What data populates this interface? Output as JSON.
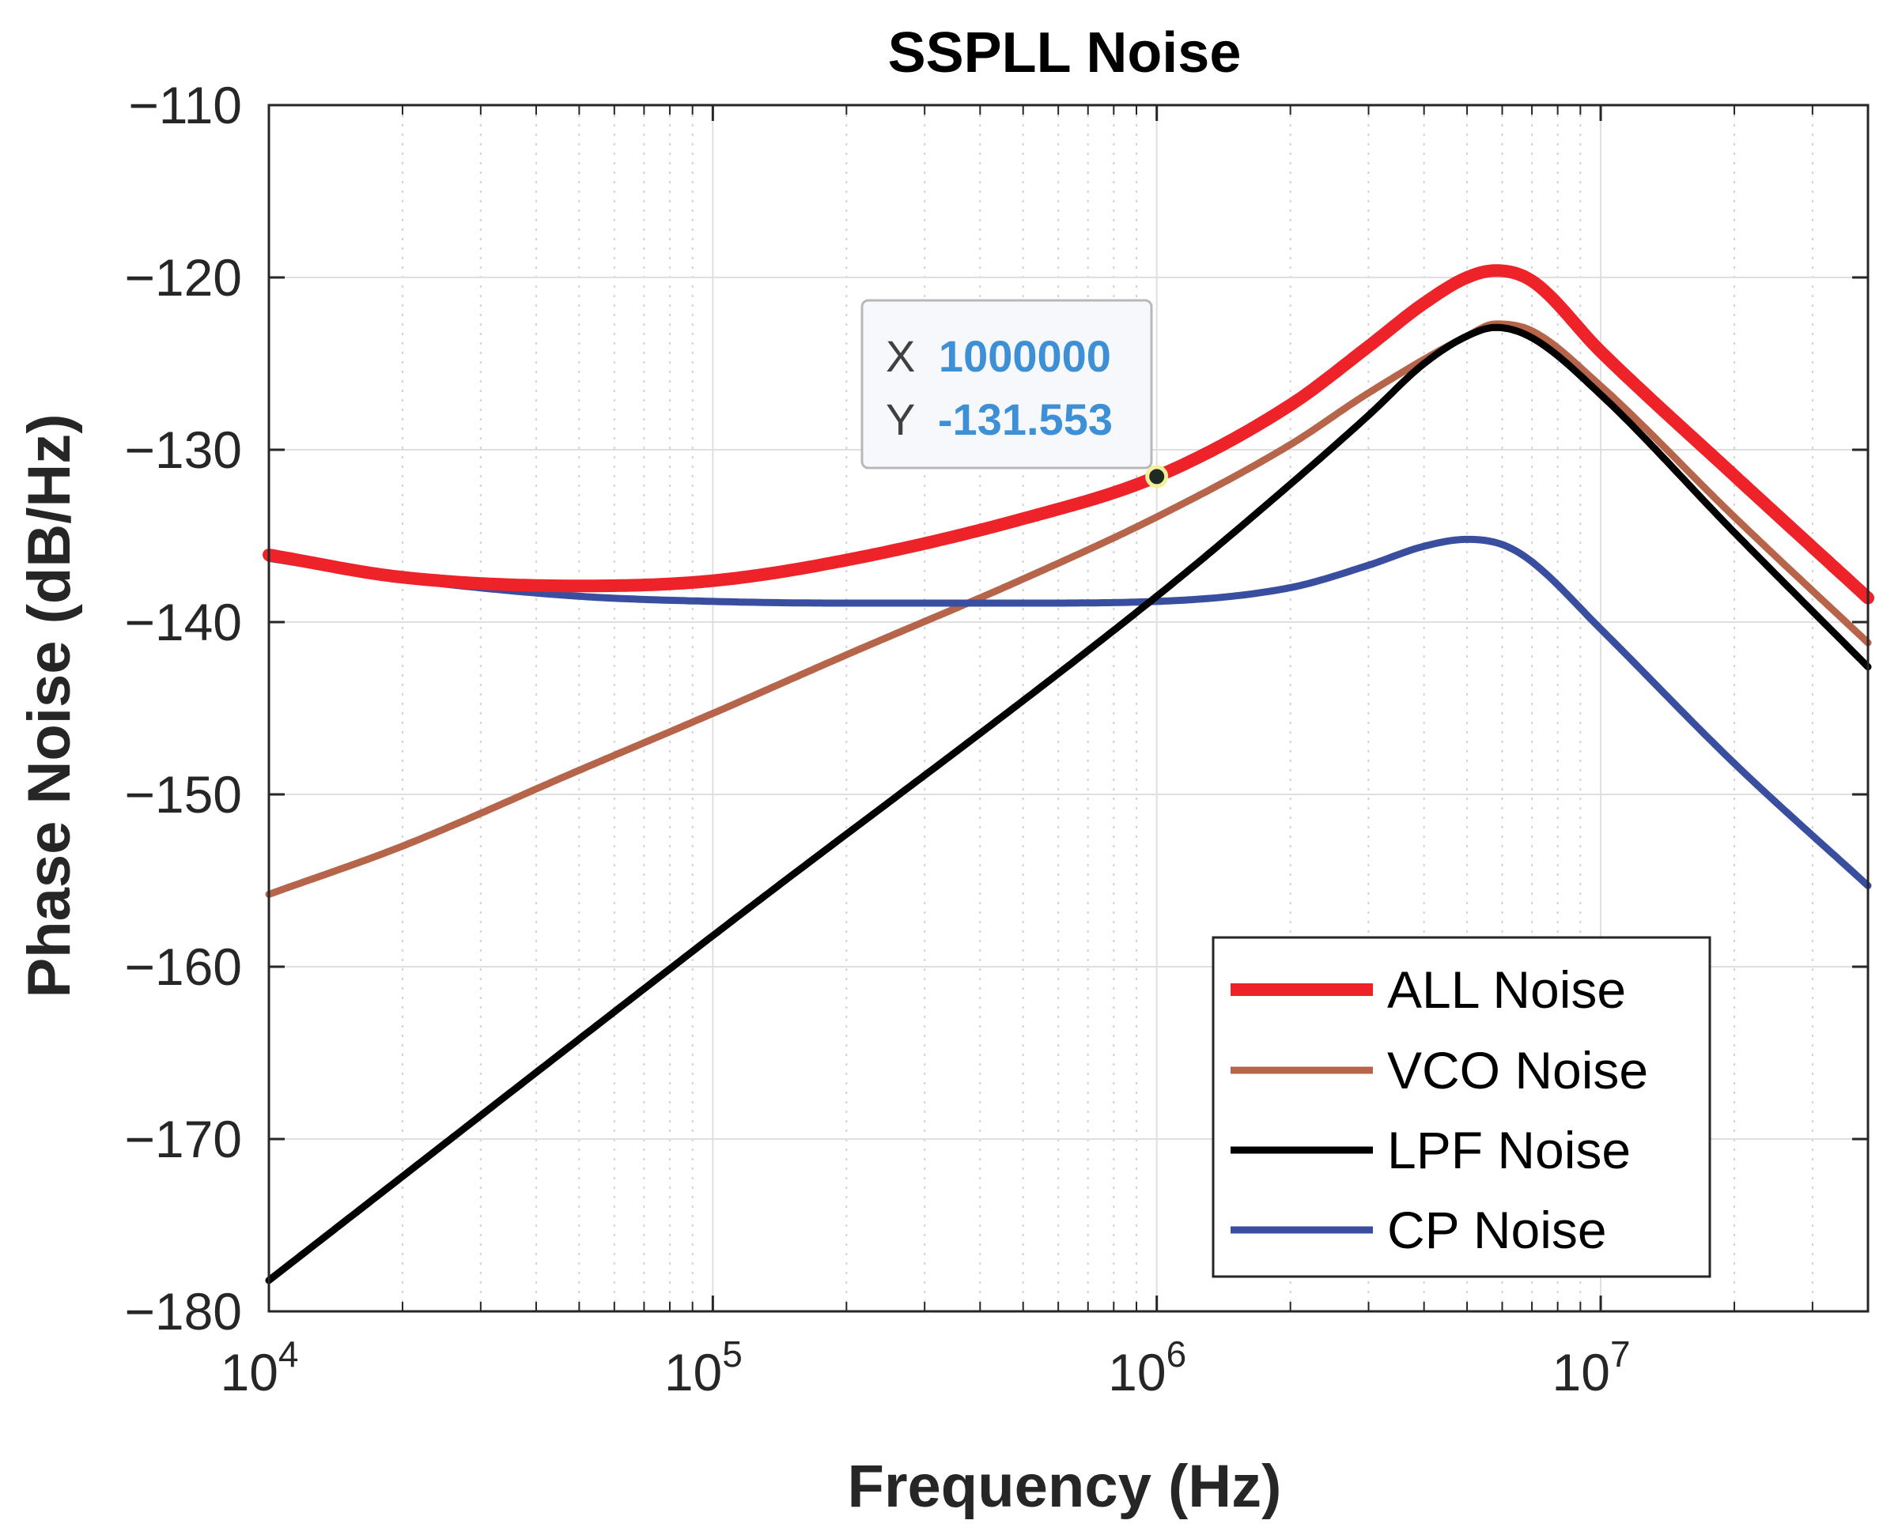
{
  "chart_data": {
    "type": "line",
    "title": "SSPLL Noise",
    "xlabel": "Frequency (Hz)",
    "ylabel": "Phase Noise (dB/Hz)",
    "xscale": "log",
    "xlim": [
      10000,
      40000000
    ],
    "ylim": [
      -180,
      -110
    ],
    "grid": true,
    "x_ticks": [
      {
        "base": "10",
        "exp": "4",
        "value": 10000
      },
      {
        "base": "10",
        "exp": "5",
        "value": 100000
      },
      {
        "base": "10",
        "exp": "6",
        "value": 1000000
      },
      {
        "base": "10",
        "exp": "7",
        "value": 10000000
      }
    ],
    "y_ticks": [
      {
        "label": "−110",
        "value": -110
      },
      {
        "label": "−120",
        "value": -120
      },
      {
        "label": "−130",
        "value": -130
      },
      {
        "label": "−140",
        "value": -140
      },
      {
        "label": "−150",
        "value": -150
      },
      {
        "label": "−160",
        "value": -160
      },
      {
        "label": "−170",
        "value": -170
      },
      {
        "label": "−180",
        "value": -180
      }
    ],
    "legend_position": "bottom-right",
    "series": [
      {
        "name": "ALL Noise",
        "color": "#ee2229",
        "x": [
          10000,
          20000,
          50000,
          100000,
          200000,
          500000,
          1000000,
          2000000,
          3000000,
          4000000,
          5000000,
          5800000,
          7000000,
          10000000,
          20000000,
          40000000
        ],
        "y": [
          -136.1,
          -137.4,
          -137.9,
          -137.6,
          -136.4,
          -134.0,
          -131.553,
          -127.4,
          -124.0,
          -121.5,
          -120.0,
          -119.6,
          -120.2,
          -124.3,
          -131.5,
          -138.6
        ]
      },
      {
        "name": "VCO Noise",
        "color": "#b6654b",
        "x": [
          10000,
          20000,
          50000,
          100000,
          200000,
          500000,
          1000000,
          2000000,
          3000000,
          5000000,
          5800000,
          7000000,
          10000000,
          20000000,
          40000000
        ],
        "y": [
          -155.8,
          -153.0,
          -148.6,
          -145.3,
          -141.9,
          -137.5,
          -133.9,
          -129.7,
          -126.7,
          -123.4,
          -122.7,
          -123.1,
          -126.3,
          -133.9,
          -141.2
        ]
      },
      {
        "name": "LPF Noise",
        "color": "#000000",
        "x": [
          10000,
          100000,
          1000000,
          2000000,
          3000000,
          4000000,
          5000000,
          5800000,
          7000000,
          10000000,
          20000000,
          40000000
        ],
        "y": [
          -178.2,
          -158.2,
          -138.5,
          -132.0,
          -128.0,
          -125.0,
          -123.4,
          -122.9,
          -123.5,
          -126.8,
          -134.8,
          -142.6
        ]
      },
      {
        "name": "CP Noise",
        "color": "#3a4ea0",
        "x": [
          10000,
          20000,
          50000,
          100000,
          200000,
          500000,
          1000000,
          2000000,
          3000000,
          4000000,
          5000000,
          6000000,
          7000000,
          10000000,
          20000000,
          40000000
        ],
        "y": [
          -136.3,
          -137.5,
          -138.5,
          -138.8,
          -138.9,
          -138.9,
          -138.8,
          -138.0,
          -136.7,
          -135.6,
          -135.2,
          -135.5,
          -136.5,
          -140.4,
          -148.2,
          -155.3
        ]
      }
    ],
    "datatip": {
      "x_label": "X",
      "x_value": "1000000",
      "y_label": "Y",
      "y_value": "-131.553",
      "point": [
        1000000,
        -131.553
      ]
    }
  },
  "colors": {
    "axis": "#262626",
    "grid": "#dfdfdf",
    "datatip_value": "#3d8fd6"
  }
}
